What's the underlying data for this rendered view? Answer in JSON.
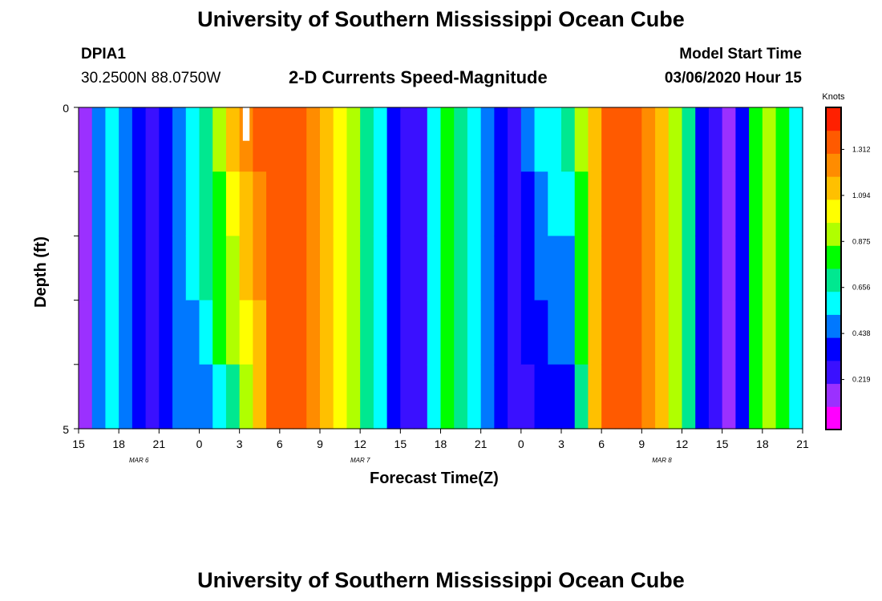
{
  "header": {
    "top_title": "University of Southern Mississippi Ocean Cube",
    "bottom_title": "University of Southern Mississippi Ocean Cube",
    "station_id": "DPIA1",
    "coordinates": "30.2500N 88.0750W",
    "chart_title": "2-D Currents Speed-Magnitude",
    "model_start_label": "Model Start Time",
    "model_start_value": "03/06/2020 Hour 15"
  },
  "chart_data": {
    "type": "heatmap",
    "title": "2-D Currents Speed-Magnitude",
    "xlabel": "Forecast Time(Z)",
    "ylabel": "Depth (ft)",
    "ylim": [
      0,
      5
    ],
    "y_tick_labels": [
      "0",
      "5"
    ],
    "x_tick_labels": [
      "15",
      "18",
      "21",
      "0",
      "3",
      "6",
      "9",
      "12",
      "15",
      "18",
      "21",
      "0",
      "3",
      "6",
      "9",
      "12",
      "15",
      "18",
      "21"
    ],
    "date_labels": [
      {
        "label": "MAR 6",
        "hour_index": 4.5
      },
      {
        "label": "MAR 7",
        "hour_index": 21
      },
      {
        "label": "MAR 8",
        "hour_index": 43.5
      }
    ],
    "colorbar": {
      "label": "Knots",
      "ticks": [
        "1.312",
        "1.094",
        "0.875",
        "0.656",
        "0.438",
        "0.219"
      ],
      "min": 0.0,
      "max": 1.53,
      "colors": [
        "#ff00ff",
        "#9b30ff",
        "#3a10ff",
        "#0000ff",
        "#0078ff",
        "#00ffff",
        "#00e890",
        "#00ff00",
        "#b0ff00",
        "#ffff00",
        "#ffc000",
        "#ff8c00",
        "#ff5a00",
        "#ff2000"
      ]
    },
    "hours": 54,
    "depth_layers": 5,
    "surface_speeds": [
      0.2,
      0.45,
      0.55,
      0.5,
      0.35,
      0.3,
      0.35,
      0.45,
      0.6,
      0.75,
      0.95,
      1.15,
      1.3,
      1.35,
      1.4,
      1.4,
      1.35,
      1.3,
      1.2,
      1.05,
      0.9,
      0.75,
      0.55,
      0.35,
      0.25,
      0.3,
      0.6,
      0.8,
      0.75,
      0.55,
      0.45,
      0.35,
      0.32,
      0.45,
      0.6,
      0.65,
      0.72,
      0.9,
      1.2,
      1.4,
      1.4,
      1.35,
      1.25,
      1.1,
      0.95,
      0.75,
      0.35,
      0.22,
      0.2,
      0.35,
      0.8,
      0.95,
      0.85,
      0.55
    ],
    "profiles": [
      [
        1,
        1,
        1,
        1,
        1
      ],
      [
        1,
        1,
        1,
        1,
        1
      ],
      [
        1,
        1,
        1,
        1,
        1
      ],
      [
        1,
        1,
        1,
        1,
        1
      ],
      [
        1,
        1,
        1,
        1,
        1
      ],
      [
        1,
        1,
        1,
        1,
        1
      ],
      [
        1,
        1,
        1,
        1,
        1
      ],
      [
        1,
        1,
        1,
        1,
        1
      ],
      [
        1,
        0.97,
        0.92,
        0.88,
        0.78
      ],
      [
        1,
        0.95,
        0.9,
        0.85,
        0.72
      ],
      [
        1,
        0.92,
        0.88,
        0.82,
        0.65
      ],
      [
        1,
        0.9,
        0.85,
        0.78,
        0.6
      ],
      [
        1,
        0.92,
        0.88,
        0.82,
        0.72
      ],
      [
        1,
        0.95,
        0.92,
        0.88,
        0.82
      ],
      [
        1,
        1,
        1,
        1,
        1
      ],
      [
        1,
        1,
        1,
        1,
        1
      ],
      [
        1,
        1,
        1,
        1,
        1
      ],
      [
        1,
        1,
        1,
        1,
        1
      ],
      [
        1,
        1,
        1,
        1,
        1
      ],
      [
        1,
        1,
        1,
        1,
        1
      ],
      [
        1,
        1,
        1,
        1,
        1
      ],
      [
        1,
        1,
        1,
        1,
        1
      ],
      [
        1,
        1,
        1,
        1,
        1
      ],
      [
        1,
        1,
        1,
        1,
        1
      ],
      [
        1,
        1,
        1,
        1,
        1
      ],
      [
        1,
        1,
        1,
        1,
        1
      ],
      [
        1,
        1,
        1,
        1,
        1
      ],
      [
        1,
        1,
        1,
        1,
        1
      ],
      [
        1,
        1,
        1,
        1,
        1
      ],
      [
        1,
        1,
        1,
        1,
        1
      ],
      [
        1,
        1,
        1,
        1,
        1
      ],
      [
        1,
        1,
        1,
        1,
        1
      ],
      [
        1,
        1,
        1,
        1,
        1
      ],
      [
        1,
        0.92,
        0.8,
        0.75,
        0.7
      ],
      [
        1,
        0.9,
        0.78,
        0.72,
        0.65
      ],
      [
        1,
        0.88,
        0.75,
        0.7,
        0.62
      ],
      [
        1,
        0.85,
        0.72,
        0.68,
        0.6
      ],
      [
        1,
        0.95,
        0.9,
        0.85,
        0.8
      ],
      [
        1,
        1,
        1,
        1,
        1
      ],
      [
        1,
        1,
        1,
        1,
        1
      ],
      [
        1,
        1,
        1,
        1,
        1
      ],
      [
        1,
        1,
        1,
        1,
        1
      ],
      [
        1,
        1,
        1,
        1,
        1
      ],
      [
        1,
        1,
        1,
        1,
        1
      ],
      [
        1,
        1,
        1,
        1,
        1
      ],
      [
        1,
        1,
        1,
        1,
        1
      ],
      [
        1,
        1,
        1,
        1,
        1
      ],
      [
        1,
        1,
        1,
        1,
        1
      ],
      [
        1,
        1,
        1,
        1,
        1
      ],
      [
        1,
        1,
        1,
        1,
        1
      ],
      [
        1,
        1,
        1,
        1,
        1
      ],
      [
        1,
        1,
        1,
        1,
        1
      ],
      [
        1,
        1,
        1,
        1,
        1
      ],
      [
        1,
        1,
        1,
        1,
        1
      ]
    ],
    "missing_cell": {
      "hour": 12,
      "layer": 0
    }
  }
}
